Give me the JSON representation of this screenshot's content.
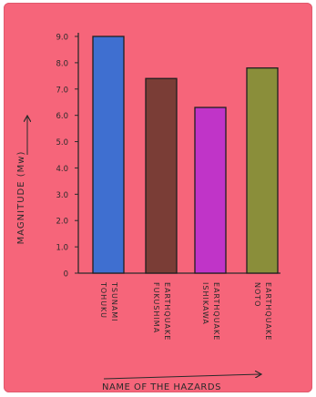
{
  "chart_data": {
    "type": "bar",
    "title": "",
    "xlabel": "NAME OF THE HAZARDS",
    "ylabel": "MAGNITUDE (Mw)",
    "ylim": [
      0,
      9.0
    ],
    "yticks": [
      "0",
      "1.0",
      "2.0",
      "3.0",
      "4.0",
      "5.0",
      "6.0",
      "7.0",
      "8.0",
      "9.0"
    ],
    "categories": [
      [
        "TOHUKU",
        "TSUNAMI"
      ],
      [
        "FUKUSHIMA",
        "EARTHQUAKE"
      ],
      [
        "ISHIKAWA",
        "EARTHQUAKE"
      ],
      [
        "NOTO",
        "EARTHQUAKE"
      ]
    ],
    "values": [
      9.0,
      7.4,
      6.3,
      7.8
    ],
    "colors": [
      "#3f6fd0",
      "#7a3d36",
      "#c034c8",
      "#8a8e3a"
    ],
    "grid": false
  },
  "colors": {
    "paper": "#f6657a",
    "axis": "#2a2a2a"
  }
}
